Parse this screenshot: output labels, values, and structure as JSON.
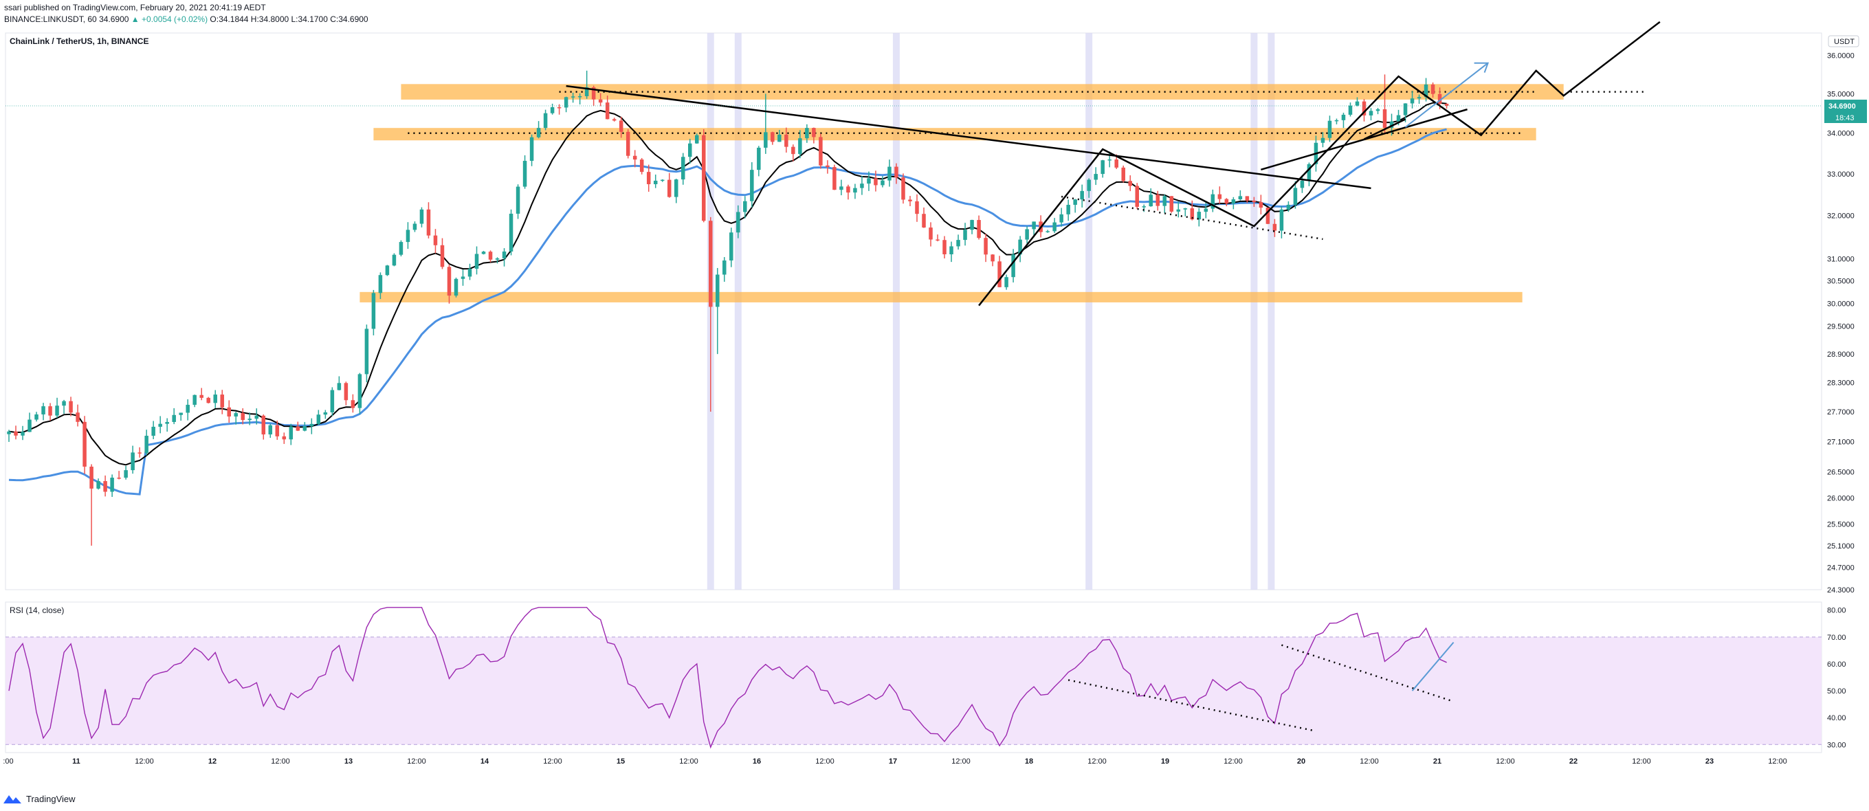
{
  "header": {
    "line1": "ssari published on TradingView.com, February 20, 2021 20:41:19 AEDT",
    "line2_prefix": "BINANCE:LINKUSDT, 60",
    "line2_price": "34.6900",
    "line2_change": "▲ +0.0054 (+0.02%)",
    "line2_ohlc": "O:34.1844 H:34.8000 L:34.1700 C:34.6900"
  },
  "chart_data": {
    "type": "candlestick",
    "title": "ChainLink / TetherUS, 1h, BINANCE",
    "currency_button": "USDT",
    "last_price_label": "34.6900",
    "countdown_label": "18:43",
    "price_axis": {
      "ticks": [
        "36.0000",
        "35.0000",
        "34.0000",
        "33.0000",
        "32.0000",
        "31.0000",
        "30.5000",
        "30.0000",
        "29.5000",
        "28.9000",
        "28.3000",
        "27.7000",
        "27.1000",
        "26.5000",
        "26.0000",
        "25.5000",
        "25.1000",
        "24.7000",
        "24.3000"
      ],
      "range": [
        24.3,
        36.6
      ],
      "scale": "log"
    },
    "time_axis": {
      "labels": [
        ":00",
        "11",
        "12:00",
        "12",
        "12:00",
        "13",
        "12:00",
        "14",
        "12:00",
        "15",
        "12:00",
        "16",
        "12:00",
        "17",
        "12:00",
        "18",
        "12:00",
        "19",
        "12:00",
        "20",
        "12:00",
        "21",
        "12:00",
        "22",
        "12:00",
        "23",
        "12:00"
      ],
      "candle_count": 210,
      "total_slots": 264
    },
    "anchors": [
      {
        "i": 0,
        "p": 27.3
      },
      {
        "i": 8,
        "p": 27.9
      },
      {
        "i": 10,
        "p": 27.4
      },
      {
        "i": 12,
        "p": 26.1
      },
      {
        "i": 16,
        "p": 26.4
      },
      {
        "i": 22,
        "p": 27.4
      },
      {
        "i": 28,
        "p": 28.1
      },
      {
        "i": 34,
        "p": 27.6
      },
      {
        "i": 40,
        "p": 27.2
      },
      {
        "i": 44,
        "p": 27.4
      },
      {
        "i": 48,
        "p": 28.2
      },
      {
        "i": 50,
        "p": 27.7
      },
      {
        "i": 53,
        "p": 30.2
      },
      {
        "i": 56,
        "p": 31.2
      },
      {
        "i": 60,
        "p": 32.0
      },
      {
        "i": 64,
        "p": 30.3
      },
      {
        "i": 68,
        "p": 31.0
      },
      {
        "i": 72,
        "p": 31.2
      },
      {
        "i": 76,
        "p": 34.0
      },
      {
        "i": 80,
        "p": 34.7
      },
      {
        "i": 84,
        "p": 35.0
      },
      {
        "i": 88,
        "p": 34.2
      },
      {
        "i": 92,
        "p": 33.0
      },
      {
        "i": 96,
        "p": 32.6
      },
      {
        "i": 100,
        "p": 34.0
      },
      {
        "i": 102,
        "p": 30.0
      },
      {
        "i": 106,
        "p": 32.0
      },
      {
        "i": 110,
        "p": 34.0
      },
      {
        "i": 114,
        "p": 33.6
      },
      {
        "i": 116,
        "p": 34.0
      },
      {
        "i": 120,
        "p": 32.8
      },
      {
        "i": 124,
        "p": 32.6
      },
      {
        "i": 128,
        "p": 33.0
      },
      {
        "i": 132,
        "p": 32.0
      },
      {
        "i": 136,
        "p": 31.0
      },
      {
        "i": 140,
        "p": 31.9
      },
      {
        "i": 144,
        "p": 30.4
      },
      {
        "i": 148,
        "p": 31.7
      },
      {
        "i": 152,
        "p": 31.8
      },
      {
        "i": 156,
        "p": 32.6
      },
      {
        "i": 160,
        "p": 33.5
      },
      {
        "i": 164,
        "p": 32.4
      },
      {
        "i": 168,
        "p": 32.3
      },
      {
        "i": 172,
        "p": 32.1
      },
      {
        "i": 176,
        "p": 32.5
      },
      {
        "i": 180,
        "p": 32.4
      },
      {
        "i": 184,
        "p": 31.8
      },
      {
        "i": 188,
        "p": 33.0
      },
      {
        "i": 192,
        "p": 34.3
      },
      {
        "i": 196,
        "p": 34.7
      },
      {
        "i": 200,
        "p": 34.3
      },
      {
        "i": 204,
        "p": 34.7
      },
      {
        "i": 206,
        "p": 35.2
      },
      {
        "i": 209,
        "p": 34.69
      }
    ],
    "rsi": {
      "label": "RSI (14, close)",
      "ticks": [
        "80.00",
        "70.00",
        "60.00",
        "50.00",
        "40.00",
        "30.00"
      ],
      "range": [
        27,
        83
      ],
      "band": [
        30,
        70
      ]
    },
    "annotations": {
      "resistance_zones": [
        {
          "from_slot": 57,
          "to_slot": 226,
          "low": 34.85,
          "high": 35.25
        },
        {
          "from_slot": 53,
          "to_slot": 222,
          "low": 33.82,
          "high": 34.13
        },
        {
          "from_slot": 51,
          "to_slot": 220,
          "low": 30.02,
          "high": 30.25
        }
      ],
      "highlight_slots": [
        102,
        106,
        129,
        157,
        181,
        183.5
      ]
    },
    "colors": {
      "up": "#26a69a",
      "down": "#ef5350",
      "ema_fast": "#000000",
      "ema_slow": "#4a90e2",
      "zone": "#ffb74d",
      "rsi_line": "#9c27b0",
      "rsi_band": "#f3e5fb",
      "projection": "#5b9bd5",
      "highlight": "#dcdcf5"
    }
  }
}
